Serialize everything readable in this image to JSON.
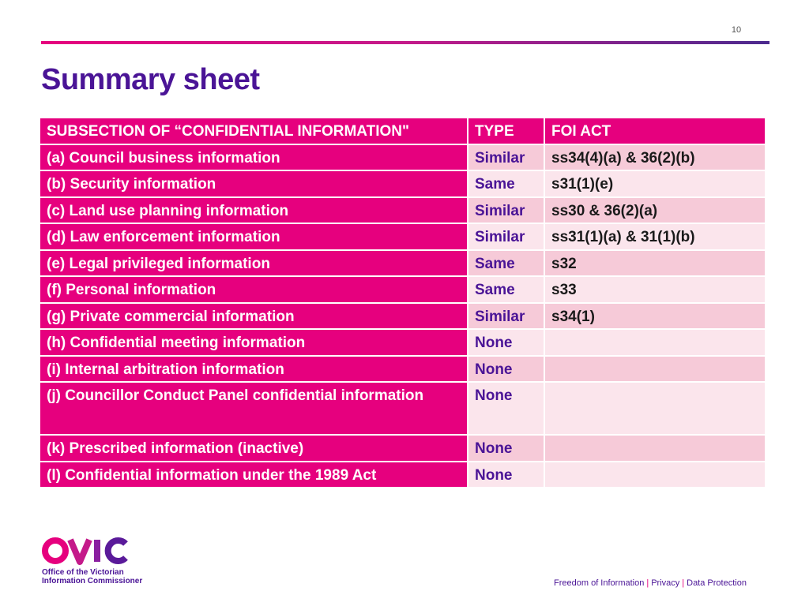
{
  "slide": {
    "page_number": "10",
    "title": "Summary sheet"
  },
  "table": {
    "headers": [
      "SUBSECTION OF “CONFIDENTIAL INFORMATION\"",
      "TYPE",
      "FOI ACT"
    ],
    "rows": [
      [
        "(a) Council business information",
        "Similar",
        "ss34(4)(a) & 36(2)(b)"
      ],
      [
        "(b) Security information",
        "Same",
        "s31(1)(e)"
      ],
      [
        "(c) Land use planning information",
        "Similar",
        "ss30 & 36(2)(a)"
      ],
      [
        "(d) Law enforcement information",
        "Similar",
        "ss31(1)(a) & 31(1)(b)"
      ],
      [
        "(e) Legal privileged information",
        "Same",
        "s32"
      ],
      [
        "(f) Personal information",
        "Same",
        "s33"
      ],
      [
        "(g) Private commercial information",
        "Similar",
        "s34(1)"
      ],
      [
        "(h) Confidential meeting information",
        "None",
        ""
      ],
      [
        "(i) Internal arbitration information",
        "None",
        ""
      ],
      [
        "(j) Councillor Conduct Panel confidential information",
        "None",
        ""
      ],
      [
        "(k) Prescribed information (inactive)",
        "None",
        ""
      ],
      [
        "(l) Confidential information under the 1989 Act",
        "None",
        ""
      ]
    ]
  },
  "logo": {
    "wordmark": "OVIC",
    "line1": "Office of the Victorian",
    "line2": "Information Commissioner"
  },
  "footer": {
    "items": [
      "Freedom of Information",
      "Privacy",
      "Data Protection"
    ],
    "separator": "|"
  },
  "colors": {
    "brand_pink": "#e6007e",
    "brand_purple": "#4a1496",
    "row_light": "#fbe5ec",
    "row_dark": "#f6cad8"
  }
}
